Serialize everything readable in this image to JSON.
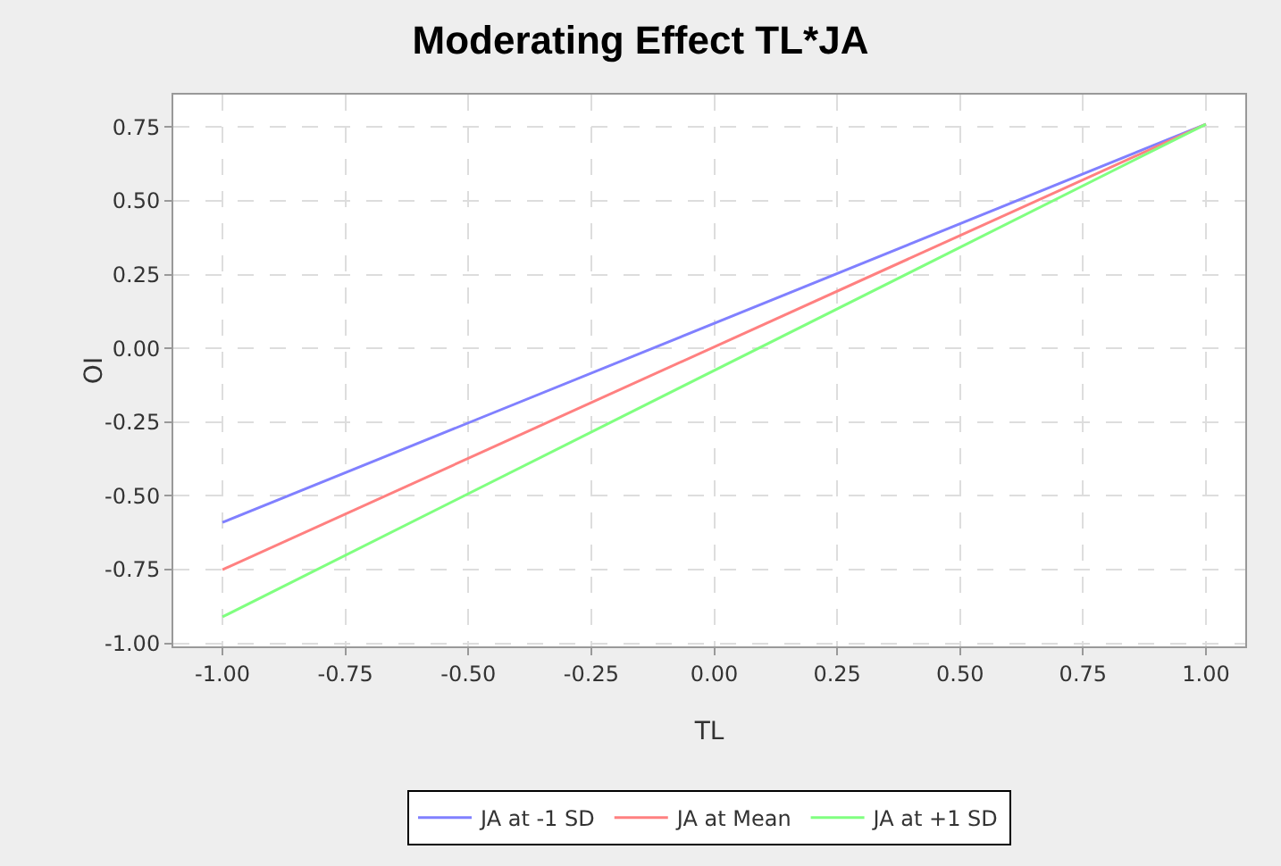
{
  "chart_data": {
    "type": "line",
    "title": "Moderating Effect TL*JA",
    "xlabel": "TL",
    "ylabel": "OI",
    "x": [
      -1,
      1
    ],
    "series": [
      {
        "name": "JA at -1 SD",
        "color": "#8080ff",
        "values": [
          -0.59,
          0.76
        ]
      },
      {
        "name": "JA at Mean",
        "color": "#ff8080",
        "values": [
          -0.75,
          0.76
        ]
      },
      {
        "name": "JA at +1 SD",
        "color": "#80ff80",
        "values": [
          -0.91,
          0.76
        ]
      }
    ],
    "xlim": [
      -1.1,
      1.08
    ],
    "xticks": [
      {
        "value": -1,
        "label": "-1.00"
      },
      {
        "value": -0.75,
        "label": "-0.75"
      },
      {
        "value": -0.5,
        "label": "-0.50"
      },
      {
        "value": -0.25,
        "label": "-0.25"
      },
      {
        "value": 0,
        "label": "0.00"
      },
      {
        "value": 0.25,
        "label": "0.25"
      },
      {
        "value": 0.5,
        "label": "0.50"
      },
      {
        "value": 0.75,
        "label": "0.75"
      },
      {
        "value": 1,
        "label": "1.00"
      }
    ],
    "ylim": [
      -1.01,
      0.86
    ],
    "yticks": [
      {
        "value": -1,
        "label": "-1.00"
      },
      {
        "value": -0.75,
        "label": "-0.75"
      },
      {
        "value": -0.5,
        "label": "-0.50"
      },
      {
        "value": -0.25,
        "label": "-0.25"
      },
      {
        "value": 0,
        "label": "0.00"
      },
      {
        "value": 0.25,
        "label": "0.25"
      },
      {
        "value": 0.5,
        "label": "0.50"
      },
      {
        "value": 0.75,
        "label": "0.75"
      }
    ],
    "grid": true,
    "legend": "bottom",
    "marker": "none",
    "line_style": "solid"
  }
}
